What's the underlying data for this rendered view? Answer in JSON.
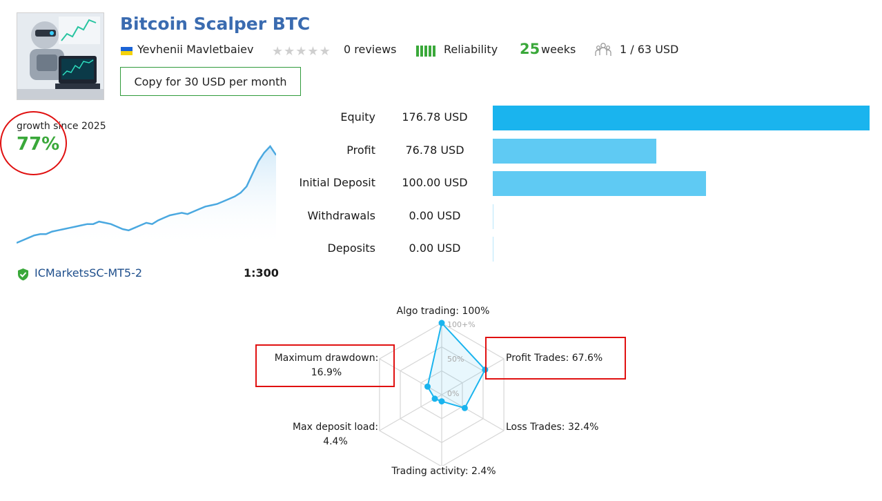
{
  "header": {
    "title": "Bitcoin Scalper BTC",
    "author": "Yevhenii Mavletbaiev",
    "reviews": "0 reviews",
    "rating_stars": 0,
    "reliability_label": "Reliability",
    "weeks_value": "25",
    "weeks_unit": "weeks",
    "subscribers": "1 / 63 USD",
    "copy_button": "Copy for 30 USD per month"
  },
  "growth": {
    "label": "growth since 2025",
    "value": "77%"
  },
  "broker": {
    "name": "ICMarketsSC-MT5-2",
    "leverage": "1:300"
  },
  "stats": [
    {
      "label": "Equity",
      "value": "176.78 USD",
      "amount": 176.78
    },
    {
      "label": "Profit",
      "value": "76.78 USD",
      "amount": 76.78
    },
    {
      "label": "Initial Deposit",
      "value": "100.00 USD",
      "amount": 100.0
    },
    {
      "label": "Withdrawals",
      "value": "0.00 USD",
      "amount": 0.0
    },
    {
      "label": "Deposits",
      "value": "0.00 USD",
      "amount": 0.0
    }
  ],
  "radar": {
    "algo": "Algo trading: 100%",
    "profit_trades": "Profit Trades: 67.6%",
    "loss_trades": "Loss Trades: 32.4%",
    "trading_activity": "Trading activity: 2.4%",
    "max_deposit_load_label": "Max deposit load:",
    "max_deposit_load_value": "4.4%",
    "max_drawdown_label": "Maximum drawdown:",
    "max_drawdown_value": "16.9%",
    "tick_100": "100+%",
    "tick_50": "50%",
    "tick_0": "0%",
    "values": [
      100,
      67.6,
      32.4,
      2.4,
      4.4,
      16.9
    ]
  },
  "colors": {
    "accent_green": "#3aa83a",
    "title_blue": "#3a6bb0",
    "equity_bar": "#1ab4ee",
    "bar_light": "#5fcaf3",
    "highlight_red": "#e01010",
    "chart_line": "#4aa8e0"
  },
  "chart_data": {
    "type": "area",
    "title": "",
    "xlabel": "",
    "ylabel": "",
    "values": [
      0,
      2,
      4,
      6,
      7,
      7,
      9,
      10,
      11,
      12,
      13,
      14,
      15,
      15,
      17,
      16,
      15,
      13,
      11,
      10,
      12,
      14,
      16,
      15,
      18,
      20,
      22,
      23,
      24,
      23,
      25,
      27,
      29,
      30,
      31,
      33,
      35,
      37,
      40,
      45,
      55,
      65,
      72,
      77,
      70
    ]
  }
}
